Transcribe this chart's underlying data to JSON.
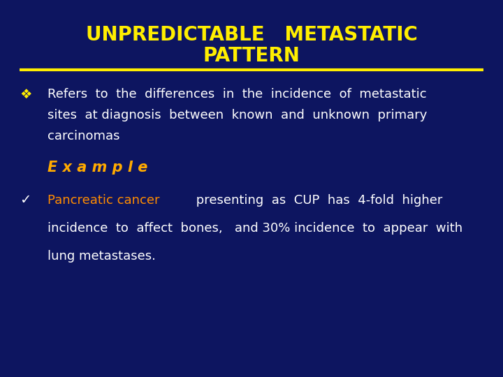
{
  "title_line1": "UNPREDICTABLE   METASTATIC",
  "title_line2": "PATTERN",
  "title_color": "#FFEE00",
  "bg_color": "#0D1560",
  "line_color": "#FFEE00",
  "bullet1_symbol": "❖",
  "bullet1_text_line1": "Refers  to  the  differences  in  the  incidence  of  metastatic",
  "bullet1_text_line2": "sites  at diagnosis  between  known  and  unknown  primary",
  "bullet1_text_line3": "carcinomas",
  "example_label": "E x a m p l e",
  "example_color": "#FFAA00",
  "bullet2_symbol": "✓",
  "bullet2_highlight": "Pancreatic cancer",
  "bullet2_highlight_color": "#FF8C00",
  "bullet2_text_rest": " presenting  as  CUP  has  4-fold  higher",
  "bullet2_text_line2": "incidence  to  affect  bones,   and 30% incidence  to  appear  with",
  "bullet2_text_line3": "lung metastases.",
  "body_text_color": "#FFFFFF",
  "font_size_title": 20,
  "font_size_body": 13,
  "font_size_example": 15,
  "font_size_bullet": 14
}
